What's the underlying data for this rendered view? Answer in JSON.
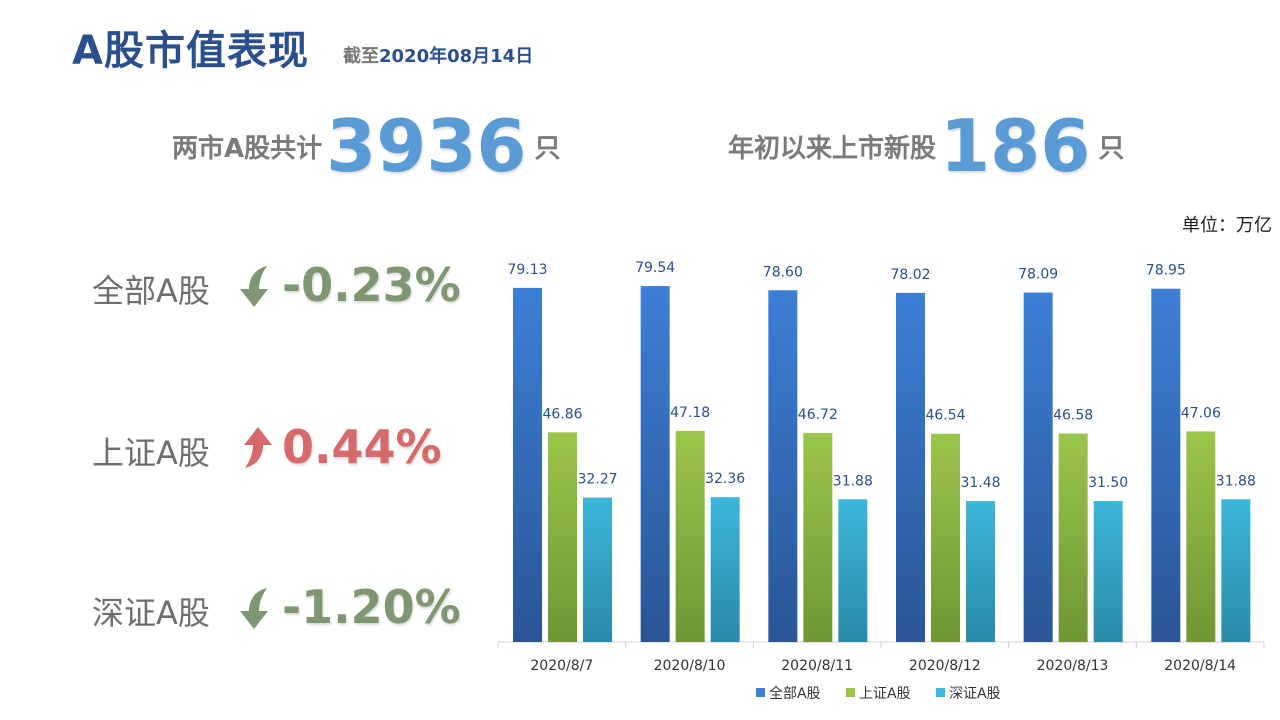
{
  "header": {
    "title": "A股市值表现",
    "asof_prefix": "截至",
    "asof_date": "2020年08月14日"
  },
  "stats": {
    "total_label": "两市A股共计",
    "total_value": "3936",
    "total_unit": "只",
    "new_label": "年初以来上市新股",
    "new_value": "186",
    "new_unit": "只"
  },
  "unit_note": "单位：万亿",
  "indices": [
    {
      "name": "全部A股",
      "change": "-0.23%",
      "direction": "down",
      "color": "#7f9673"
    },
    {
      "name": "上证A股",
      "change": "0.44%",
      "direction": "up",
      "color": "#d66a6a"
    },
    {
      "name": "深证A股",
      "change": "-1.20%",
      "direction": "down",
      "color": "#7f9673"
    }
  ],
  "chart_data": {
    "type": "bar",
    "categories": [
      "2020/8/7",
      "2020/8/10",
      "2020/8/11",
      "2020/8/12",
      "2020/8/13",
      "2020/8/14"
    ],
    "series": [
      {
        "name": "全部A股",
        "values": [
          79.13,
          79.54,
          78.6,
          78.02,
          78.09,
          78.95
        ],
        "color_top": "#3d7fd6",
        "color_bottom": "#2a5596"
      },
      {
        "name": "上证A股",
        "values": [
          46.86,
          47.18,
          46.72,
          46.54,
          46.58,
          47.06
        ],
        "color_top": "#9cc54a",
        "color_bottom": "#6f9535"
      },
      {
        "name": "深证A股",
        "values": [
          32.27,
          32.36,
          31.88,
          31.48,
          31.5,
          31.88
        ],
        "color_top": "#3cb6d9",
        "color_bottom": "#2a8aa8"
      }
    ],
    "ylim": [
      0,
      80
    ],
    "data_labels": true,
    "legend": "bottom",
    "grid": false
  }
}
